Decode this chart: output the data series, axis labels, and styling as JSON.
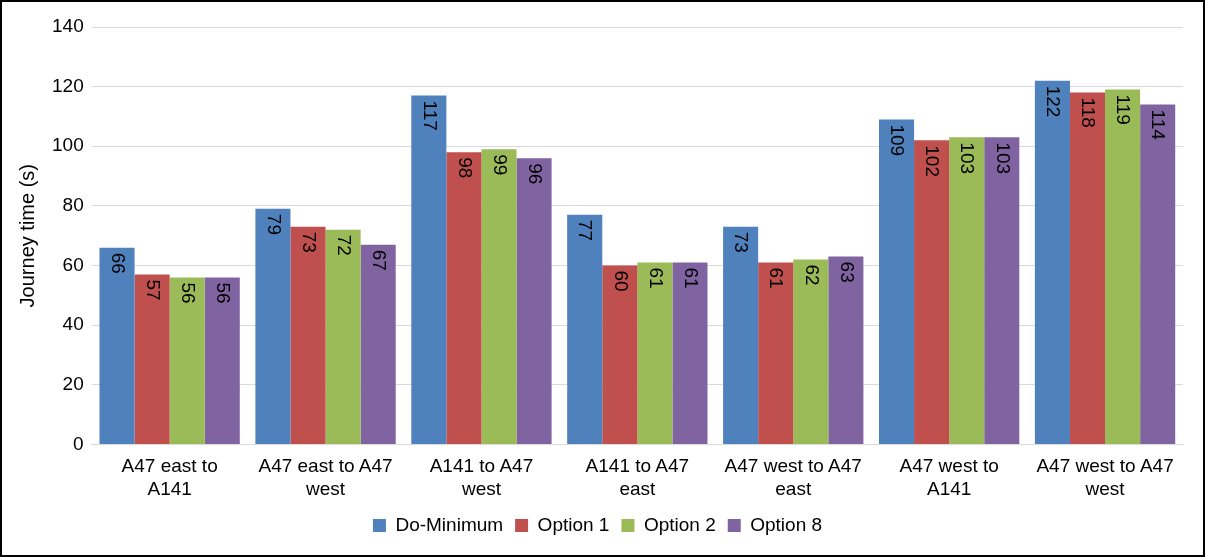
{
  "chart_data": {
    "type": "bar",
    "ylabel": "Journey time (s)",
    "categories": [
      "A47 east to A141",
      "A47 east to A47 west",
      "A141 to A47 west",
      "A141 to A47 east",
      "A47 west to A47 east",
      "A47 west to A141",
      "A47 west to A47 west"
    ],
    "series": [
      {
        "name": "Do-Minimum",
        "color": "#4f81bd",
        "values": [
          66,
          79,
          117,
          77,
          73,
          109,
          122
        ]
      },
      {
        "name": "Option 1",
        "color": "#c0504d",
        "values": [
          57,
          73,
          98,
          60,
          61,
          102,
          118
        ]
      },
      {
        "name": "Option 2",
        "color": "#9bbb59",
        "values": [
          56,
          72,
          99,
          61,
          62,
          103,
          119
        ]
      },
      {
        "name": "Option 8",
        "color": "#8064a2",
        "values": [
          56,
          67,
          96,
          61,
          63,
          103,
          114
        ]
      }
    ],
    "ylim": [
      0,
      140
    ],
    "yticks": [
      0,
      20,
      40,
      60,
      80,
      100,
      120,
      140
    ],
    "grid": "y",
    "legend": "bottom",
    "data_labels": true
  }
}
